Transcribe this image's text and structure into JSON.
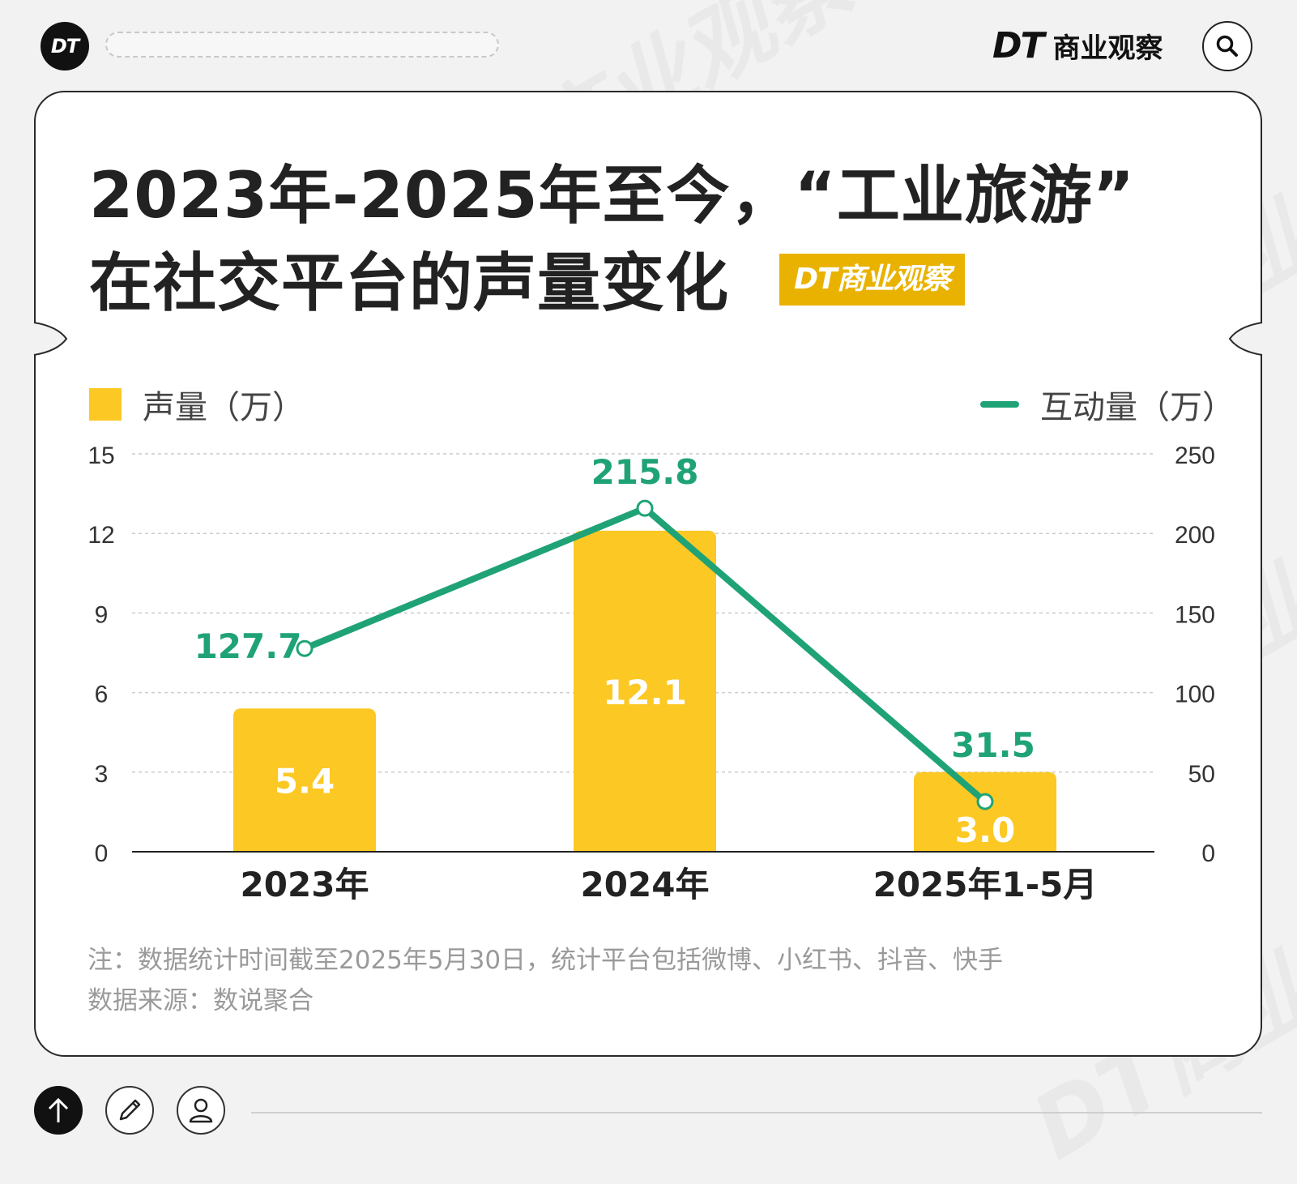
{
  "header": {
    "logo_text": "DT",
    "brand_dt": "DT",
    "brand_name": "商业观察"
  },
  "title": {
    "line1": "2023年-2025年至今，“工业旅游”",
    "line2": "在社交平台的声量变化",
    "badge": "DT商业观察"
  },
  "legend": {
    "bar_label": "声量（万）",
    "line_label": "互动量（万）"
  },
  "colors": {
    "bar": "#fcc824",
    "line": "#1fa376",
    "axis": "#222222",
    "grid": "#cccccc"
  },
  "chart_data": {
    "type": "bar",
    "categories": [
      "2023年",
      "2024年",
      "2025年1-5月"
    ],
    "series": [
      {
        "name": "声量（万）",
        "type": "bar",
        "axis": "left",
        "values": [
          5.4,
          12.1,
          3.0
        ],
        "labels": [
          "5.4",
          "12.1",
          "3.0"
        ]
      },
      {
        "name": "互动量（万）",
        "type": "line",
        "axis": "right",
        "values": [
          127.7,
          215.8,
          31.5
        ],
        "labels": [
          "127.7",
          "215.8",
          "31.5"
        ]
      }
    ],
    "left_axis": {
      "ylim": [
        0,
        15
      ],
      "ticks": [
        "0",
        "3",
        "6",
        "9",
        "12",
        "15"
      ]
    },
    "right_axis": {
      "ylim": [
        0,
        250
      ],
      "ticks": [
        "0",
        "50",
        "100",
        "150",
        "200",
        "250"
      ]
    },
    "grid": true
  },
  "notes": {
    "line1": "注：数据统计时间截至2025年5月30日，统计平台包括微博、小红书、抖音、快手",
    "line2": "数据来源：数说聚合"
  },
  "watermark": "DT商业观察",
  "icons": [
    "search-icon",
    "up-arrow-icon",
    "pencil-icon",
    "user-icon"
  ]
}
